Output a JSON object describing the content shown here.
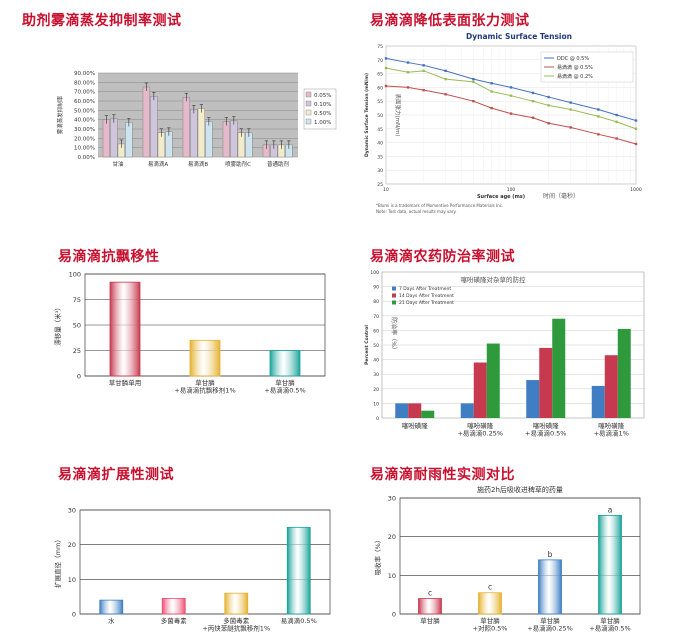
{
  "titles": {
    "evap": "助剂雾滴蒸发抑制率测试",
    "tension": "易滴滴降低表面张力测试",
    "drift": "易滴滴抗飘移性",
    "control": "易滴滴农药防治率测试",
    "spread": "易滴滴扩展性测试",
    "rain": "易滴滴耐雨性实测对比"
  },
  "colors": {
    "title_red": "#c8102e",
    "bar_pink": "#e4b9ca",
    "bar_lilac": "#cfc5dd",
    "bar_cream": "#f2eccc",
    "bar_lightblue": "#cde4ee",
    "plot_gray": "#bfbfbf",
    "red": "#c7394e",
    "yellow": "#e5b230",
    "teal": "#1aa39b",
    "blue": "#3f7ec3",
    "pink": "#ee4f72",
    "green": "#2e9a3c",
    "series_blue": "#4472c4",
    "series_darkred": "#c0504d",
    "series_green": "#9bbb59"
  },
  "chart_data": [
    {
      "id": "evap",
      "type": "bar",
      "ylabel": "雾滴蒸发抑制率",
      "ylim": [
        0,
        90
      ],
      "yticks": [
        "0.00%",
        "10.00%",
        "20.00%",
        "30.00%",
        "40.00%",
        "50.00%",
        "60.00%",
        "70.00%",
        "80.00%",
        "90.00%"
      ],
      "categories": [
        "甘油",
        "易滴滴A",
        "易滴滴B",
        "喷雾助剂C",
        "普通助剂"
      ],
      "series": [
        {
          "name": "0.05%",
          "values": [
            40,
            75,
            64,
            38,
            13
          ]
        },
        {
          "name": "0.10%",
          "values": [
            41,
            65,
            51,
            39,
            13
          ]
        },
        {
          "name": "0.50%",
          "values": [
            14,
            26,
            52,
            26,
            13
          ]
        },
        {
          "name": "1.00%",
          "values": [
            37,
            27,
            38,
            26,
            13
          ]
        }
      ],
      "grid": true,
      "legend": "right"
    },
    {
      "id": "tension",
      "type": "line",
      "title": "Dynamic Surface Tension",
      "subtitle": "动态表面张力",
      "xlabel": "Surface age (ms)",
      "xlabel_cn": "时间（毫秒）",
      "ylabel": "Dynamic Surface Tension (mN/m)",
      "ylabel_cn": "表面张力(mN/m)",
      "xscale": "log",
      "xlim": [
        10,
        1000
      ],
      "xticks": [
        "10",
        "100",
        "1000"
      ],
      "ylim": [
        25,
        75
      ],
      "yticks": [
        "25",
        "30",
        "35",
        "40",
        "45",
        "50",
        "55",
        "60",
        "65",
        "70",
        "75"
      ],
      "series": [
        {
          "name": "DDC @ 0.5%",
          "x": [
            10,
            15,
            20,
            30,
            50,
            70,
            100,
            150,
            200,
            300,
            500,
            700,
            1000
          ],
          "y": [
            70.5,
            69,
            68,
            66,
            63,
            61.5,
            60,
            58,
            56.5,
            54.5,
            52,
            50,
            48
          ]
        },
        {
          "name": "易滴滴 @ 0.5%",
          "x": [
            10,
            15,
            20,
            30,
            50,
            70,
            100,
            150,
            200,
            300,
            500,
            700,
            1000
          ],
          "y": [
            60.5,
            60,
            59,
            57.5,
            55,
            52.5,
            50.5,
            49,
            47,
            45.5,
            43,
            41.5,
            39.5
          ]
        },
        {
          "name": "易滴滴 @ 0.2%",
          "x": [
            10,
            15,
            20,
            30,
            50,
            70,
            100,
            150,
            200,
            300,
            500,
            700,
            1000
          ],
          "y": [
            67,
            65.5,
            66,
            63,
            62,
            58.5,
            57,
            55,
            53.5,
            52,
            49.5,
            47.5,
            45
          ]
        }
      ],
      "footnote1": "*Blumi is a trademark of Momentive Performance Materials Inc.",
      "footnote2": "Note: Test data, actual results may vary.",
      "grid": true,
      "legend": "top-right"
    },
    {
      "id": "drift",
      "type": "bar",
      "ylabel": "漂移量（米³）",
      "ylim": [
        0,
        100
      ],
      "yticks": [
        "0",
        "25",
        "50",
        "75",
        "100"
      ],
      "categories": [
        "草甘膦单用",
        "草甘膦\n+易滴滴抗飘移剂1%",
        "草甘膦\n+易滴滴0.5%"
      ],
      "values": [
        92,
        35,
        25
      ],
      "grid": true
    },
    {
      "id": "control",
      "type": "bar",
      "title": "噻吩磺隆对杂草的防控",
      "ylabel": "Percent Control",
      "ylabel_cn": "防治率（%）",
      "ylim": [
        0,
        100
      ],
      "yticks": [
        "0",
        "10",
        "20",
        "30",
        "40",
        "50",
        "60",
        "70",
        "80",
        "90",
        "100"
      ],
      "categories": [
        "噻吩磺隆",
        "噻吩磺隆\n+易滴滴0.25%",
        "噻吩磺隆\n+易滴滴0.5%",
        "噻吩磺隆\n+易滴滴1%"
      ],
      "series": [
        {
          "name": "7 Days After Treatment",
          "values": [
            10,
            10,
            26,
            22
          ]
        },
        {
          "name": "14 Days After Treatment",
          "values": [
            10,
            38,
            48,
            43
          ]
        },
        {
          "name": "21 Days After Treatment",
          "values": [
            5,
            51,
            68,
            61
          ]
        }
      ],
      "grid": true,
      "legend": "top-left"
    },
    {
      "id": "spread",
      "type": "bar",
      "ylabel": "扩展直径（mm）",
      "ylim": [
        0,
        30
      ],
      "yticks": [
        "0",
        "10",
        "20",
        "30"
      ],
      "categories": [
        "水",
        "多菌毒素",
        "多菌毒素\n+丙炔苯醚抗飘移剂1%",
        "易滴滴0.5%"
      ],
      "values": [
        4,
        4.5,
        6,
        25
      ],
      "grid": true
    },
    {
      "id": "rain",
      "type": "bar",
      "title": "施药2h后吸收进稗草的药量",
      "ylabel": "吸收率（%）",
      "ylim": [
        0,
        30
      ],
      "yticks": [
        "0",
        "10",
        "20",
        "30"
      ],
      "categories": [
        "草甘膦",
        "草甘膦\n+对照0.5%",
        "草甘膦\n+易滴滴0.25%",
        "草甘膦\n+易滴滴0.5%"
      ],
      "values": [
        4,
        5.5,
        14,
        25.5
      ],
      "bar_labels": [
        "c",
        "c",
        "b",
        "a"
      ],
      "grid": true
    }
  ]
}
